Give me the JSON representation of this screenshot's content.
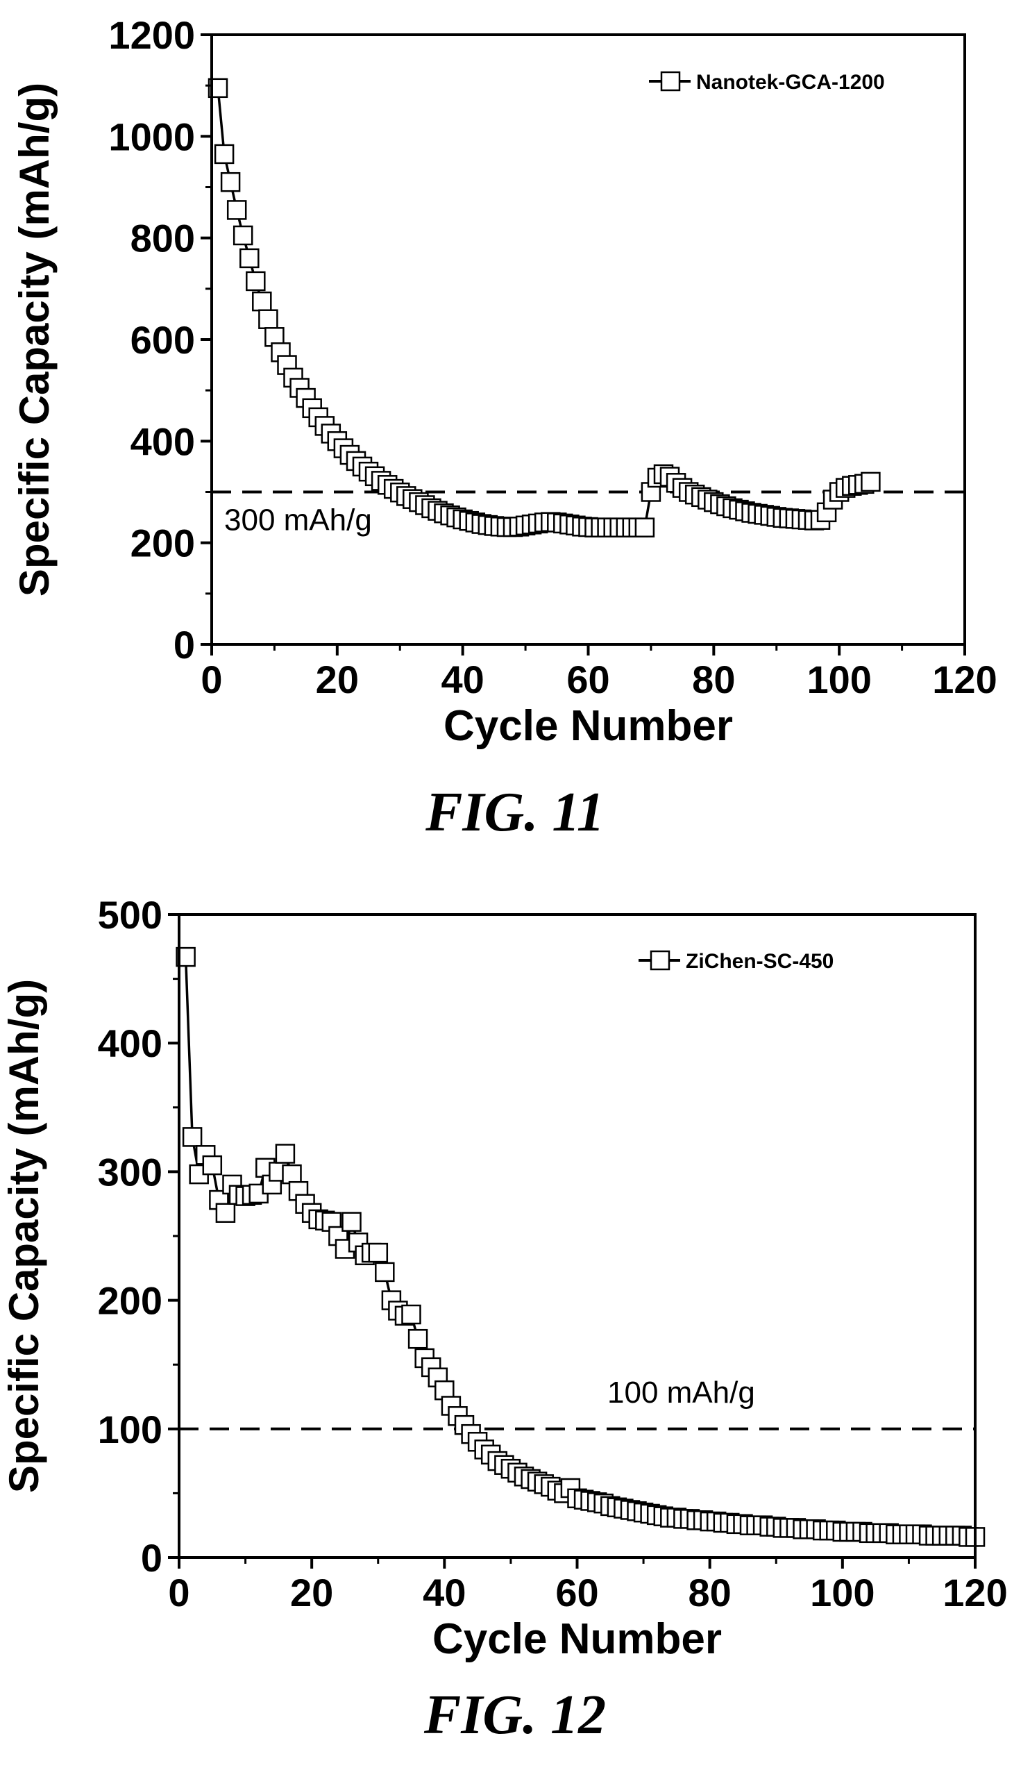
{
  "chart_data": [
    {
      "type": "scatter",
      "xlabel": "Cycle Number",
      "ylabel": "Specific Capacity (mAh/g)",
      "xlim": [
        0,
        120
      ],
      "ylim": [
        0,
        1200
      ],
      "x_ticks": [
        0,
        20,
        40,
        60,
        80,
        100,
        120
      ],
      "y_ticks": [
        0,
        200,
        400,
        600,
        800,
        1000,
        1200
      ],
      "legend_position": "top-right",
      "series": [
        {
          "name": "Nanotek-GCA-1200",
          "marker": "open-square",
          "x": [
            1,
            2,
            3,
            4,
            5,
            6,
            7,
            8,
            9,
            10,
            11,
            12,
            13,
            14,
            15,
            16,
            17,
            18,
            19,
            20,
            21,
            22,
            23,
            24,
            25,
            26,
            27,
            28,
            29,
            30,
            31,
            32,
            33,
            34,
            35,
            36,
            37,
            38,
            39,
            40,
            41,
            42,
            43,
            44,
            45,
            46,
            47,
            48,
            49,
            50,
            51,
            52,
            53,
            54,
            55,
            56,
            57,
            58,
            59,
            60,
            61,
            62,
            63,
            64,
            65,
            66,
            67,
            68,
            69,
            70,
            71,
            72,
            73,
            74,
            75,
            76,
            77,
            78,
            79,
            80,
            81,
            82,
            83,
            84,
            85,
            86,
            87,
            88,
            89,
            90,
            91,
            92,
            93,
            94,
            95,
            96,
            97,
            98,
            99,
            100,
            101,
            102,
            103,
            104,
            105
          ],
          "y": [
            1095,
            965,
            910,
            855,
            805,
            760,
            715,
            675,
            640,
            605,
            575,
            550,
            525,
            505,
            485,
            465,
            447,
            430,
            415,
            400,
            386,
            373,
            361,
            350,
            340,
            331,
            322,
            314,
            306,
            299,
            292,
            286,
            280,
            274,
            268,
            263,
            258,
            254,
            250,
            246,
            243,
            240,
            237,
            235,
            233,
            232,
            231,
            231,
            232,
            234,
            236,
            238,
            240,
            241,
            240,
            238,
            236,
            234,
            232,
            231,
            230,
            230,
            230,
            230,
            230,
            230,
            230,
            230,
            230,
            300,
            328,
            335,
            330,
            318,
            308,
            300,
            295,
            290,
            285,
            280,
            276,
            272,
            268,
            265,
            262,
            259,
            257,
            255,
            253,
            251,
            249,
            248,
            247,
            246,
            245,
            244,
            245,
            260,
            285,
            300,
            308,
            312,
            314,
            316,
            320
          ]
        }
      ],
      "reference_line": {
        "y": 300,
        "label": "300 mAh/g"
      },
      "caption": "FIG. 11"
    },
    {
      "type": "scatter",
      "xlabel": "Cycle Number",
      "ylabel": "Specific Capacity (mAh/g)",
      "xlim": [
        0,
        120
      ],
      "ylim": [
        0,
        500
      ],
      "x_ticks": [
        0,
        20,
        40,
        60,
        80,
        100,
        120
      ],
      "y_ticks": [
        0,
        100,
        200,
        300,
        400,
        500
      ],
      "legend_position": "top-right",
      "series": [
        {
          "name": "ZiChen-SC-450",
          "marker": "open-square",
          "x": [
            1,
            2,
            3,
            4,
            5,
            6,
            7,
            8,
            9,
            10,
            11,
            12,
            13,
            14,
            15,
            16,
            17,
            18,
            19,
            20,
            21,
            22,
            23,
            24,
            25,
            26,
            27,
            28,
            29,
            30,
            31,
            32,
            33,
            34,
            35,
            36,
            37,
            38,
            39,
            40,
            41,
            42,
            43,
            44,
            45,
            46,
            47,
            48,
            49,
            50,
            51,
            52,
            53,
            54,
            55,
            56,
            57,
            58,
            59,
            60,
            61,
            62,
            63,
            64,
            65,
            66,
            67,
            68,
            69,
            70,
            71,
            72,
            73,
            74,
            75,
            76,
            77,
            78,
            79,
            80,
            81,
            82,
            83,
            84,
            85,
            86,
            87,
            88,
            89,
            90,
            91,
            92,
            93,
            94,
            95,
            96,
            97,
            98,
            99,
            100,
            101,
            102,
            103,
            104,
            105,
            106,
            107,
            108,
            109,
            110,
            111,
            112,
            113,
            114,
            115,
            116,
            117,
            118,
            119,
            120
          ],
          "y": [
            467,
            327,
            298,
            313,
            305,
            278,
            268,
            290,
            282,
            281,
            282,
            283,
            303,
            290,
            300,
            314,
            298,
            285,
            275,
            268,
            263,
            262,
            261,
            250,
            240,
            261,
            245,
            235,
            237,
            237,
            222,
            200,
            192,
            188,
            189,
            170,
            155,
            148,
            140,
            130,
            118,
            110,
            103,
            96,
            90,
            84,
            80,
            75,
            72,
            69,
            66,
            63,
            61,
            59,
            57,
            55,
            52,
            50,
            54,
            46,
            45,
            44,
            43,
            42,
            40,
            39,
            38,
            37,
            36,
            35,
            34,
            33,
            32,
            31,
            31,
            30,
            30,
            29,
            29,
            28,
            28,
            27,
            27,
            26,
            26,
            25,
            25,
            25,
            24,
            24,
            23,
            23,
            23,
            22,
            22,
            22,
            21,
            21,
            21,
            20,
            20,
            20,
            20,
            19,
            19,
            19,
            19,
            18,
            18,
            18,
            18,
            18,
            17,
            17,
            17,
            17,
            17,
            17,
            16,
            16
          ]
        }
      ],
      "reference_line": {
        "y": 100,
        "label": "100 mAh/g"
      },
      "caption": "FIG. 12"
    }
  ]
}
